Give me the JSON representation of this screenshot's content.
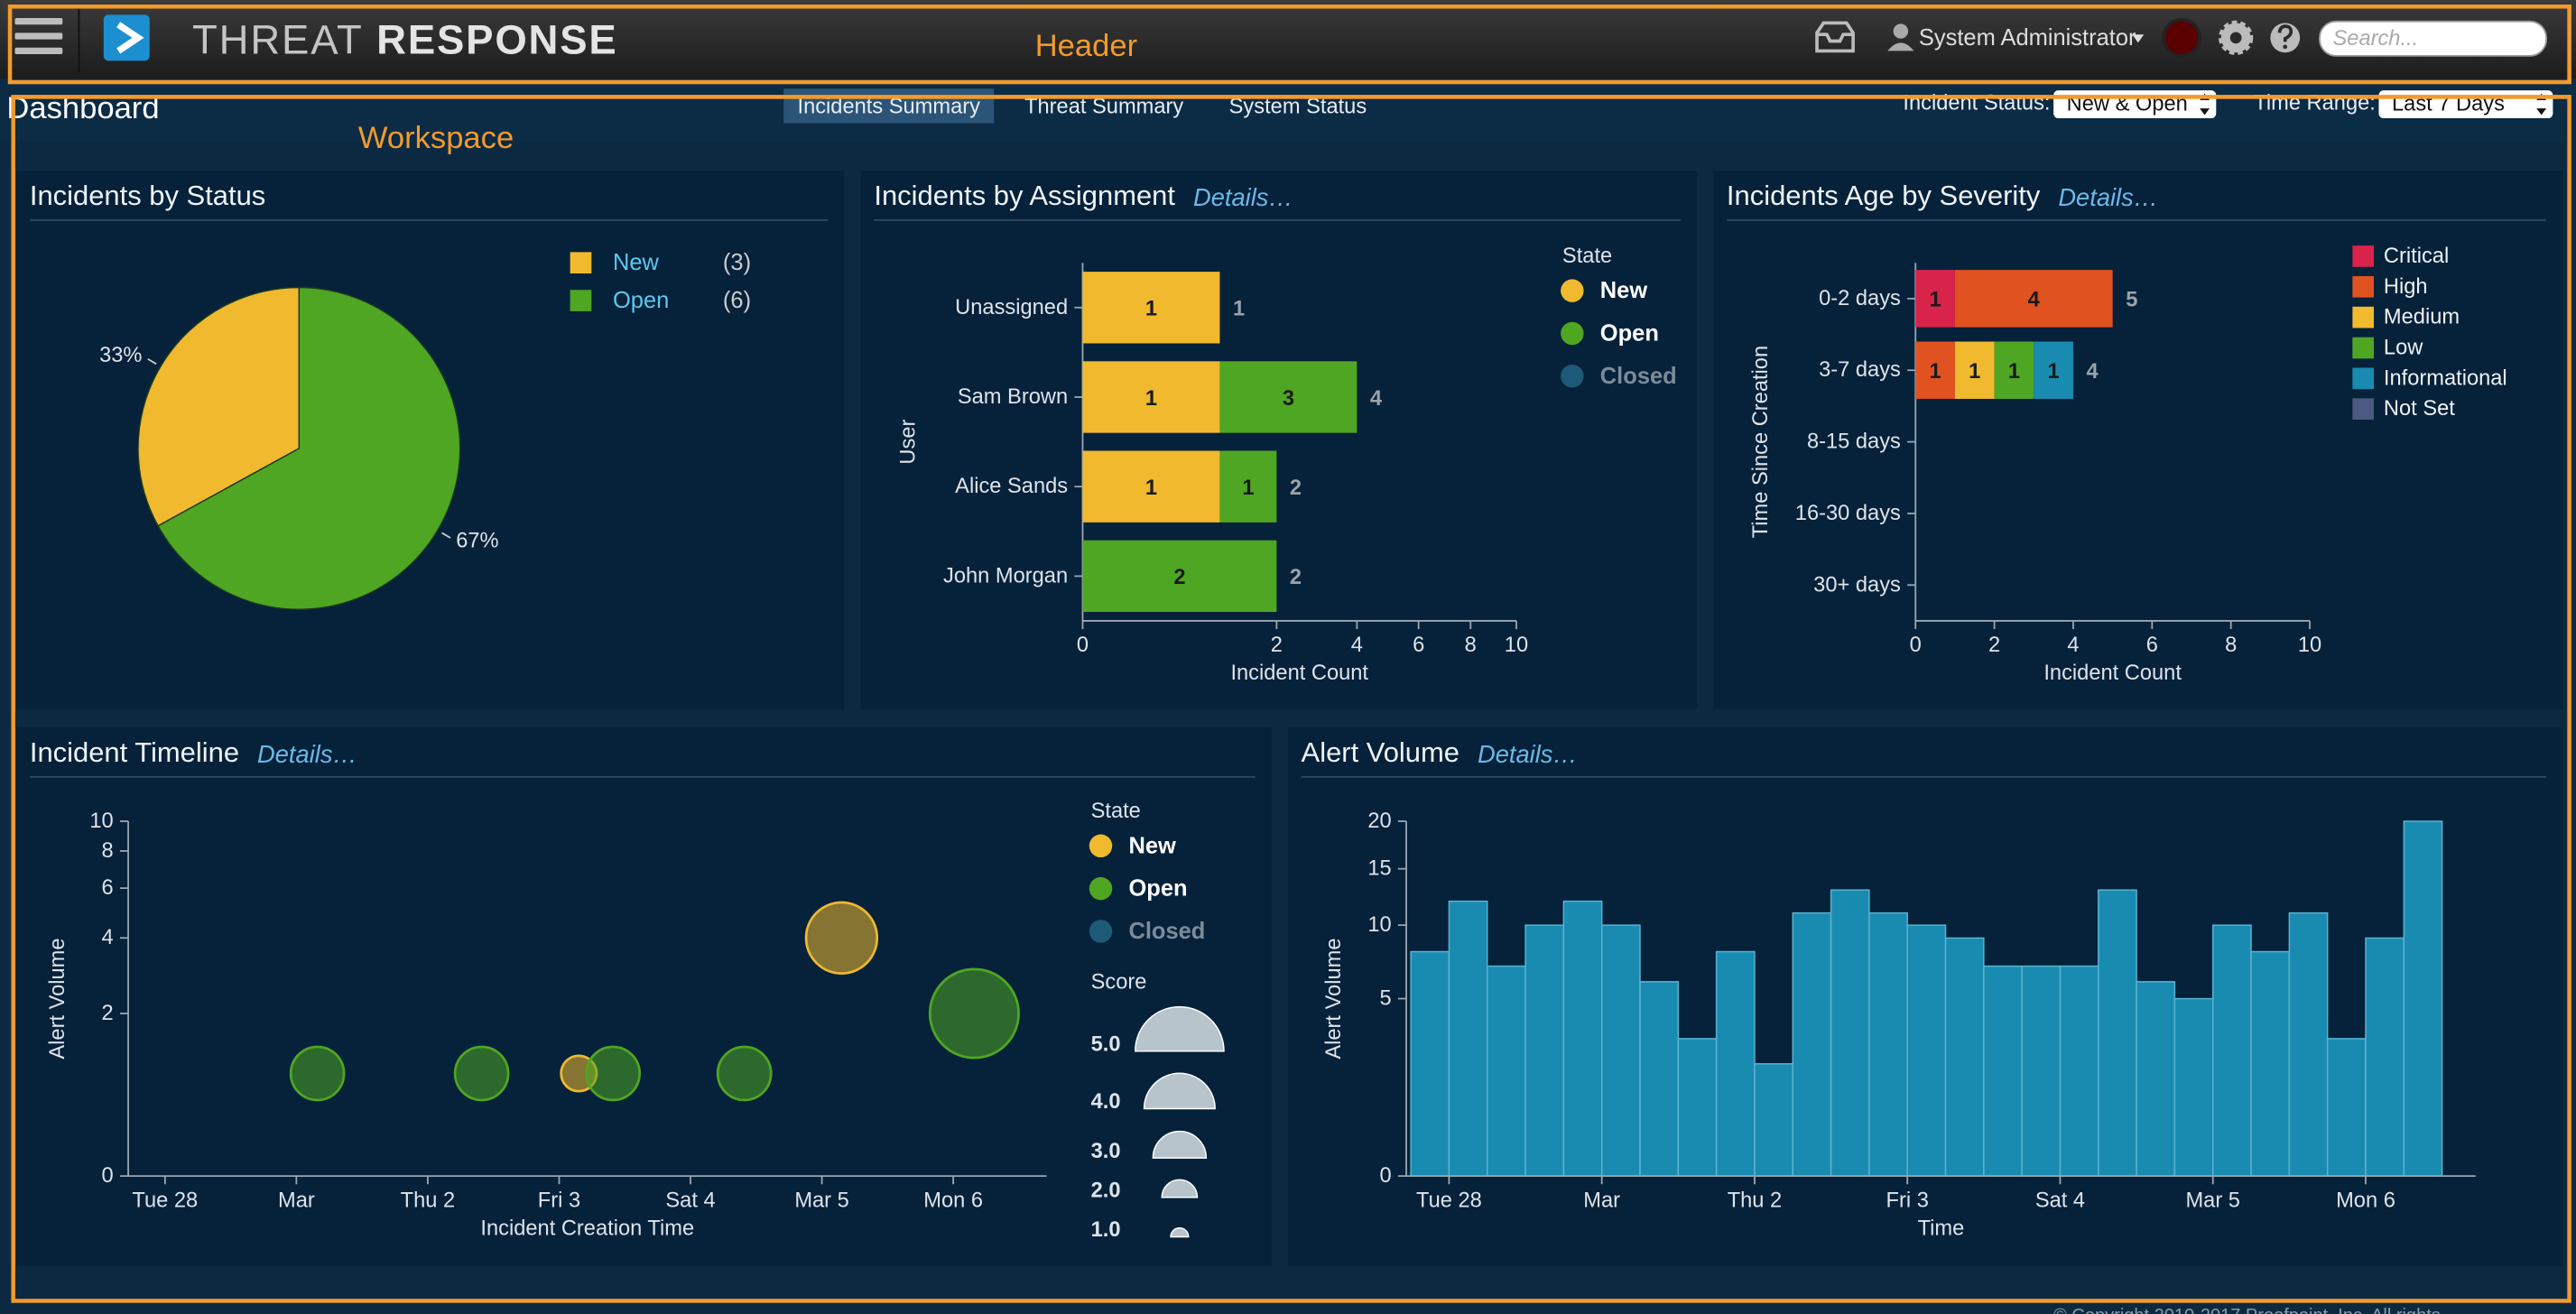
{
  "header": {
    "title_light": "THREAT",
    "title_bold": "RESPONSE",
    "user": "System Administrator",
    "search_placeholder": "Search..."
  },
  "annotations": {
    "header": "Header",
    "workspace": "Workspace"
  },
  "workspace": {
    "title": "Dashboard",
    "tabs": [
      "Incidents Summary",
      "Threat Summary",
      "System Status"
    ],
    "filters": [
      {
        "label": "Incident Status:",
        "value": "New & Open"
      },
      {
        "label": "Time Range:",
        "value": "Last 7 Days"
      }
    ]
  },
  "chart_data": [
    {
      "type": "pie",
      "title": "Incidents by Status",
      "categories": [
        "New",
        "Open"
      ],
      "values": [
        33,
        67
      ],
      "value_labels": [
        "33%",
        "67%"
      ],
      "legend_counts": [
        "(3)",
        "(6)"
      ],
      "colors": [
        "#f0b92e",
        "#4fa622"
      ]
    },
    {
      "type": "bar",
      "orientation": "horizontal",
      "stacked": true,
      "title": "Incidents by Assignment",
      "details": "Details…",
      "categories": [
        "Unassigned",
        "Sam Brown",
        "Alice Sands",
        "John Morgan"
      ],
      "series": [
        {
          "name": "New",
          "color": "#f0b92e",
          "values": [
            1,
            1,
            1,
            0
          ]
        },
        {
          "name": "Open",
          "color": "#4fa622",
          "values": [
            0,
            3,
            1,
            2
          ]
        },
        {
          "name": "Closed",
          "color": "#1d5a78",
          "values": [
            0,
            0,
            0,
            0
          ]
        }
      ],
      "totals": [
        1,
        4,
        2,
        2
      ],
      "legend_title": "State",
      "xlabel": "Incident Count",
      "ylabel": "User",
      "xlim": [
        0,
        10
      ],
      "xticks": [
        0,
        2,
        4,
        6,
        8,
        10
      ],
      "xscale": "sqrt"
    },
    {
      "type": "bar",
      "orientation": "horizontal",
      "stacked": true,
      "title": "Incidents Age by Severity",
      "details": "Details…",
      "categories": [
        "0-2 days",
        "3-7 days",
        "8-15 days",
        "16-30 days",
        "30+ days"
      ],
      "series": [
        {
          "name": "Critical",
          "color": "#d8234a",
          "values": [
            1,
            0,
            0,
            0,
            0
          ]
        },
        {
          "name": "High",
          "color": "#e0521f",
          "values": [
            4,
            1,
            0,
            0,
            0
          ]
        },
        {
          "name": "Medium",
          "color": "#f0b92e",
          "values": [
            0,
            1,
            0,
            0,
            0
          ]
        },
        {
          "name": "Low",
          "color": "#4fa622",
          "values": [
            0,
            1,
            0,
            0,
            0
          ]
        },
        {
          "name": "Informational",
          "color": "#1a8bb0",
          "values": [
            0,
            1,
            0,
            0,
            0
          ]
        },
        {
          "name": "Not Set",
          "color": "#4a5a80",
          "values": [
            0,
            0,
            0,
            0,
            0
          ]
        }
      ],
      "totals": [
        5,
        4,
        null,
        null,
        null
      ],
      "xlabel": "Incident Count",
      "ylabel": "Time Since Creation",
      "xlim": [
        0,
        10
      ],
      "xticks": [
        0,
        2,
        4,
        6,
        8,
        10
      ],
      "xscale": "linear"
    },
    {
      "type": "scatter",
      "title": "Incident Timeline",
      "details": "Details…",
      "series": [
        {
          "name": "New",
          "color": "#f0b92e",
          "x": [
            3.15,
            5.15
          ],
          "values": [
            1,
            4
          ],
          "sizes": [
            2,
            4
          ]
        },
        {
          "name": "Open",
          "color": "#4fa622",
          "x": [
            1.16,
            2.41,
            3.41,
            4.41,
            6.16
          ],
          "values": [
            1,
            1,
            1,
            1,
            2
          ],
          "sizes": [
            3,
            3,
            3,
            3,
            5
          ]
        },
        {
          "name": "Closed",
          "color": "#1d5a78",
          "x": [],
          "values": [],
          "sizes": []
        }
      ],
      "legend_title": "State",
      "size_legend_title": "Score",
      "size_legend": [
        {
          "value": 5,
          "label": "5.0"
        },
        {
          "value": 4,
          "label": "4.0"
        },
        {
          "value": 3,
          "label": "3.0"
        },
        {
          "value": 2,
          "label": "2.0"
        },
        {
          "value": 1,
          "label": "1.0"
        }
      ],
      "xlabel": "Incident Creation Time",
      "ylabel": "Alert Volume",
      "xlim": [
        -0.28,
        6.71
      ],
      "xticks": [
        {
          "value": 0,
          "label": "Tue 28"
        },
        {
          "value": 1,
          "label": "Mar"
        },
        {
          "value": 2,
          "label": "Thu 2"
        },
        {
          "value": 3,
          "label": "Fri 3"
        },
        {
          "value": 4,
          "label": "Sat 4"
        },
        {
          "value": 5,
          "label": "Mar 5"
        },
        {
          "value": 6,
          "label": "Mon 6"
        }
      ],
      "ylim": [
        0,
        10
      ],
      "yticks": [
        0,
        2,
        4,
        6,
        8,
        10
      ],
      "yscale": "symlog"
    },
    {
      "type": "histogram",
      "title": "Alert Volume",
      "details": "Details…",
      "bins": [
        -0.25,
        0,
        0.25,
        0.5,
        0.75,
        1,
        1.25,
        1.5,
        1.75,
        2,
        2.25,
        2.5,
        2.75,
        3,
        3.25,
        3.5,
        3.75,
        4,
        4.25,
        4.5,
        4.75,
        5,
        5.25,
        5.5,
        5.75,
        6,
        6.25,
        6.5
      ],
      "values": [
        8,
        12,
        7,
        10,
        12,
        10,
        6,
        3,
        8,
        2,
        11,
        13,
        11,
        10,
        9,
        7,
        7,
        7,
        13,
        6,
        5,
        10,
        8,
        11,
        3,
        9,
        20
      ],
      "color": "#1a8bb0",
      "xlabel": "Time",
      "ylabel": "Alert Volume",
      "xlim": [
        -0.28,
        6.72
      ],
      "xticks": [
        {
          "value": 0,
          "label": "Tue 28"
        },
        {
          "value": 1,
          "label": "Mar"
        },
        {
          "value": 2,
          "label": "Thu 2"
        },
        {
          "value": 3,
          "label": "Fri 3"
        },
        {
          "value": 4,
          "label": "Sat 4"
        },
        {
          "value": 5,
          "label": "Mar 5"
        },
        {
          "value": 6,
          "label": "Mon 6"
        }
      ],
      "ylim": [
        0,
        20
      ],
      "yticks": [
        0,
        5,
        10,
        15,
        20
      ],
      "yscale": "sqrt"
    }
  ],
  "footer": "© Copyright 2010-2017 Proofpoint, Inc. All rights"
}
